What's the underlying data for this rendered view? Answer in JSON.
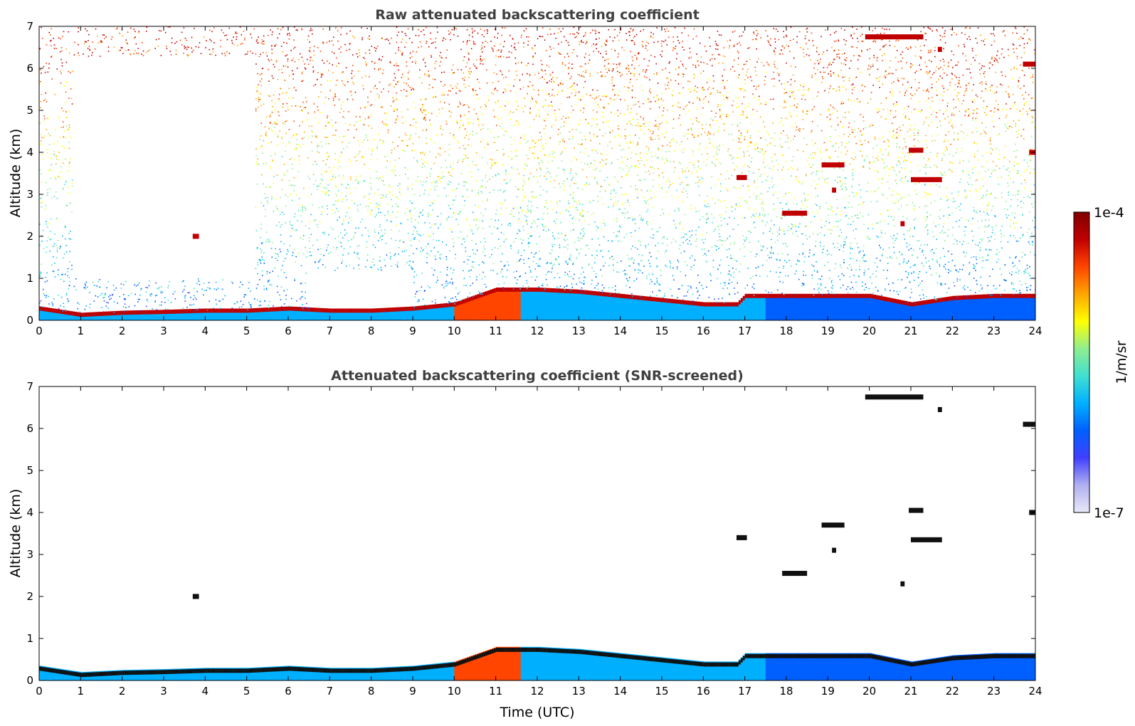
{
  "chart_data": [
    {
      "type": "heatmap",
      "title": "Raw attenuated backscattering coefficient",
      "xlabel": "",
      "ylabel": "Altitude (km)",
      "xlim": [
        0,
        24
      ],
      "ylim": [
        0,
        7
      ],
      "x_ticks": [
        "0",
        "1",
        "2",
        "3",
        "4",
        "5",
        "6",
        "7",
        "8",
        "9",
        "10",
        "11",
        "12",
        "13",
        "14",
        "15",
        "16",
        "17",
        "18",
        "19",
        "20",
        "21",
        "22",
        "23",
        "24"
      ],
      "y_ticks": [
        "0",
        "1",
        "2",
        "3",
        "4",
        "5",
        "6",
        "7"
      ],
      "boundary_layer_top_km": [
        [
          0,
          0.3
        ],
        [
          1,
          0.15
        ],
        [
          2,
          0.2
        ],
        [
          3,
          0.22
        ],
        [
          4,
          0.25
        ],
        [
          5,
          0.25
        ],
        [
          6,
          0.3
        ],
        [
          7,
          0.25
        ],
        [
          8,
          0.25
        ],
        [
          9,
          0.3
        ],
        [
          10,
          0.4
        ],
        [
          11,
          0.75
        ],
        [
          12,
          0.75
        ],
        [
          13,
          0.7
        ],
        [
          14,
          0.6
        ],
        [
          15,
          0.5
        ],
        [
          16,
          0.4
        ],
        [
          16.8,
          0.4
        ],
        [
          17,
          0.6
        ],
        [
          18,
          0.6
        ],
        [
          19,
          0.6
        ],
        [
          20,
          0.6
        ],
        [
          21,
          0.4
        ],
        [
          22,
          0.55
        ],
        [
          23,
          0.6
        ],
        [
          24,
          0.6
        ]
      ],
      "cloud_layers": [
        {
          "t_start": 3.7,
          "t_end": 3.85,
          "alt_km": 2.0
        },
        {
          "t_start": 16.8,
          "t_end": 17.05,
          "alt_km": 3.4
        },
        {
          "t_start": 17.9,
          "t_end": 18.5,
          "alt_km": 2.55
        },
        {
          "t_start": 18.85,
          "t_end": 19.4,
          "alt_km": 3.7
        },
        {
          "t_start": 19.1,
          "t_end": 19.2,
          "alt_km": 3.1
        },
        {
          "t_start": 19.9,
          "t_end": 21.3,
          "alt_km": 6.75
        },
        {
          "t_start": 20.75,
          "t_end": 20.85,
          "alt_km": 2.3
        },
        {
          "t_start": 20.95,
          "t_end": 21.3,
          "alt_km": 4.05
        },
        {
          "t_start": 21.0,
          "t_end": 21.75,
          "alt_km": 3.35
        },
        {
          "t_start": 21.65,
          "t_end": 21.75,
          "alt_km": 6.45
        },
        {
          "t_start": 23.7,
          "t_end": 24.0,
          "alt_km": 6.1
        },
        {
          "t_start": 23.85,
          "t_end": 24.0,
          "alt_km": 4.0
        }
      ]
    },
    {
      "type": "heatmap",
      "title": "Attenuated backscattering coefficient (SNR-screened)",
      "xlabel": "Time (UTC)",
      "ylabel": "Altitude (km)",
      "xlim": [
        0,
        24
      ],
      "ylim": [
        0,
        7
      ],
      "x_ticks": [
        "0",
        "1",
        "2",
        "3",
        "4",
        "5",
        "6",
        "7",
        "8",
        "9",
        "10",
        "11",
        "12",
        "13",
        "14",
        "15",
        "16",
        "17",
        "18",
        "19",
        "20",
        "21",
        "22",
        "23",
        "24"
      ],
      "y_ticks": [
        "0",
        "1",
        "2",
        "3",
        "4",
        "5",
        "6",
        "7"
      ]
    }
  ],
  "colorbar": {
    "label": "1/m/sr",
    "max_label": "1e-4",
    "min_label": "1e-7",
    "colors": [
      "#e8e8f8",
      "#b0b0f0",
      "#4040ff",
      "#0060ff",
      "#00b0ff",
      "#40e0d0",
      "#90ee90",
      "#ffff00",
      "#ffa500",
      "#ff4500",
      "#c00000",
      "#800000"
    ]
  }
}
